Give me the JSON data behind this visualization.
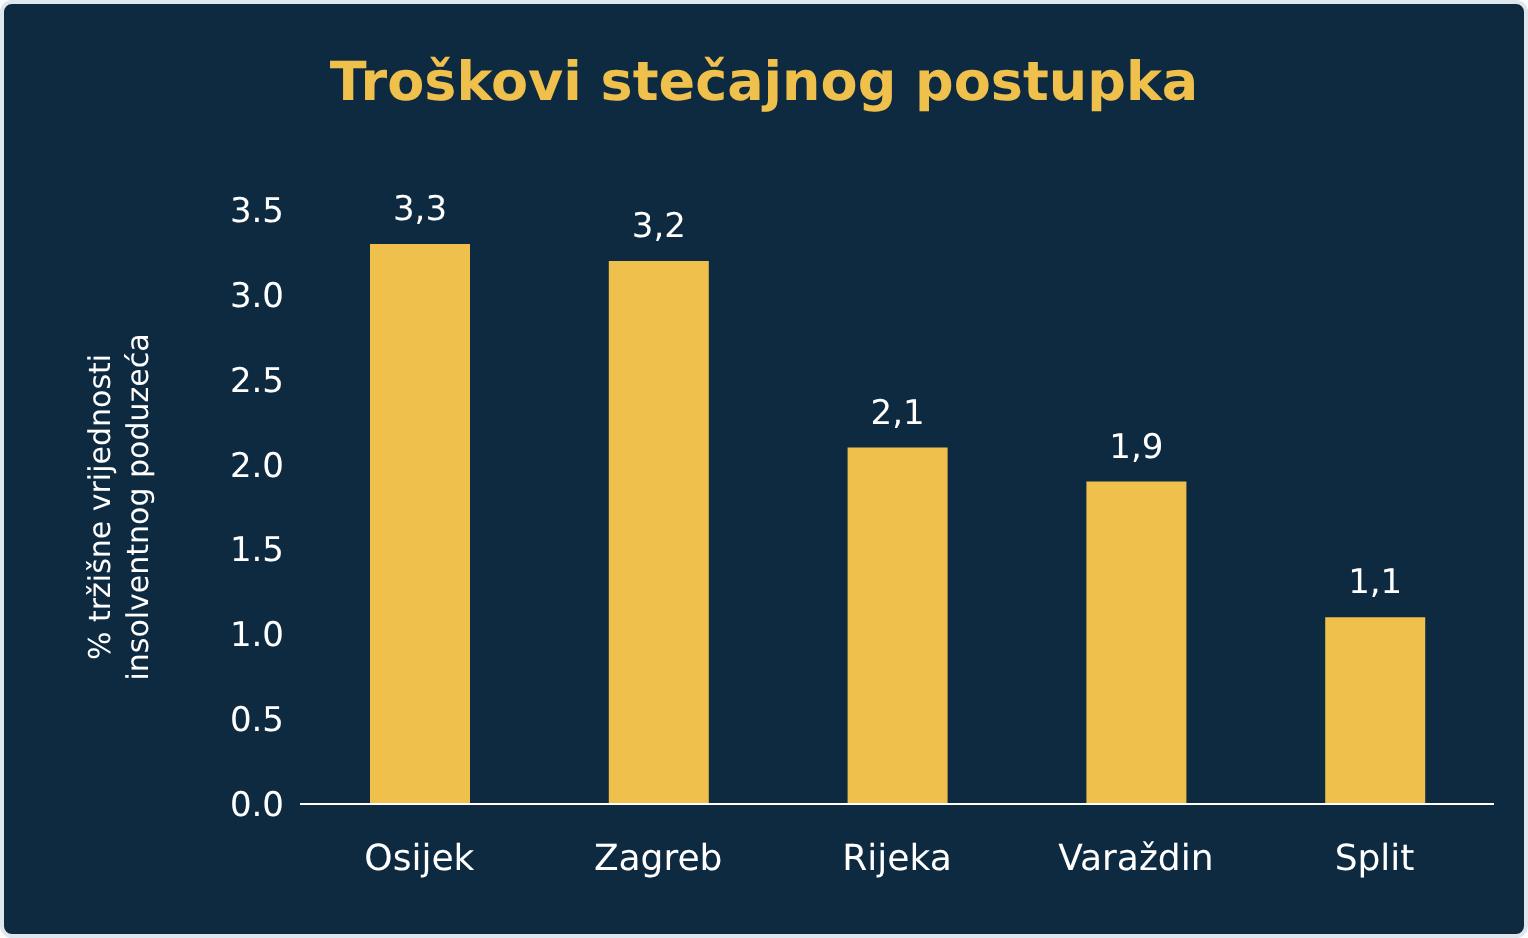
{
  "chart_data": {
    "type": "bar",
    "title": "Troškovi stečajnog postupka",
    "ylabel": "% tržišne vrijednosti\ninsolventnog poduzeća",
    "categories": [
      "Osijek",
      "Zagreb",
      "Rijeka",
      "Varaždin",
      "Split"
    ],
    "values": [
      3.3,
      3.2,
      2.1,
      1.9,
      1.1
    ],
    "value_labels": [
      "3,3",
      "3,2",
      "2,1",
      "1,9",
      "1,1"
    ],
    "color": "#efc04b",
    "ylim": [
      0,
      3.5
    ],
    "yticks": [
      {
        "value": 0,
        "label": "0.0"
      },
      {
        "value": 0.5,
        "label": "0.5"
      },
      {
        "value": 1,
        "label": "1.0"
      },
      {
        "value": 1.5,
        "label": "1.5"
      },
      {
        "value": 2,
        "label": "2.0"
      },
      {
        "value": 2.5,
        "label": "2.5"
      },
      {
        "value": 3,
        "label": "3.0"
      },
      {
        "value": 3.5,
        "label": "3.5"
      }
    ],
    "grid": false,
    "legend": false
  }
}
